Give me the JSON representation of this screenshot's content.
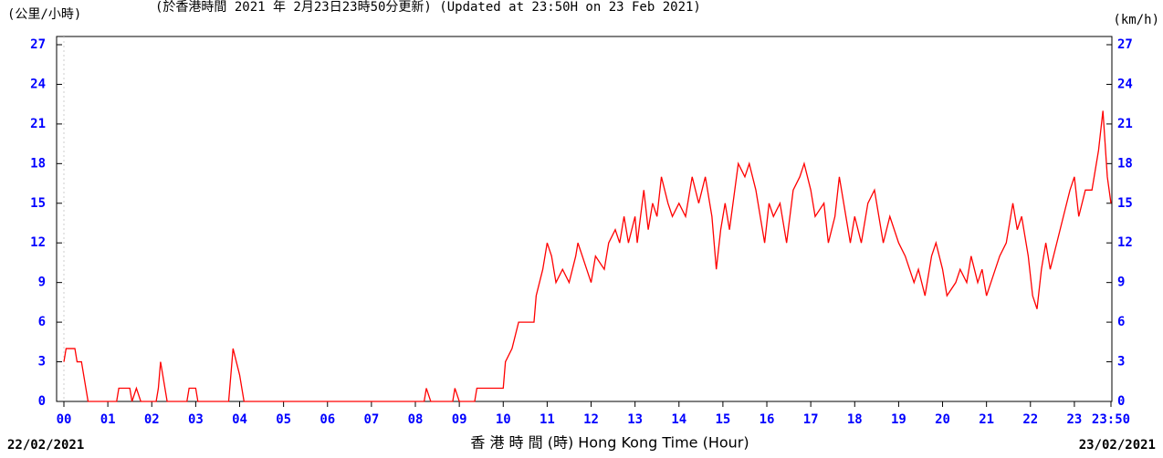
{
  "chart_data": {
    "type": "line",
    "title": "(於香港時間 2021 年 2月23日23時50分更新) (Updated at 23:50H on 23 Feb 2021)",
    "y_label": "(公里/小時)",
    "y2_label": "(km/h)",
    "x_label": "香 港 時 間 (時) Hong Kong Time (Hour)",
    "start_date": "22/02/2021",
    "end_date": "23/02/2021",
    "xlim": [
      0,
      23.833
    ],
    "xticks": [
      {
        "value": 0,
        "label": "00"
      },
      {
        "value": 1,
        "label": "01"
      },
      {
        "value": 2,
        "label": "02"
      },
      {
        "value": 3,
        "label": "03"
      },
      {
        "value": 4,
        "label": "04"
      },
      {
        "value": 5,
        "label": "05"
      },
      {
        "value": 6,
        "label": "06"
      },
      {
        "value": 7,
        "label": "07"
      },
      {
        "value": 8,
        "label": "08"
      },
      {
        "value": 9,
        "label": "09"
      },
      {
        "value": 10,
        "label": "10"
      },
      {
        "value": 11,
        "label": "11"
      },
      {
        "value": 12,
        "label": "12"
      },
      {
        "value": 13,
        "label": "13"
      },
      {
        "value": 14,
        "label": "14"
      },
      {
        "value": 15,
        "label": "15"
      },
      {
        "value": 16,
        "label": "16"
      },
      {
        "value": 17,
        "label": "17"
      },
      {
        "value": 18,
        "label": "18"
      },
      {
        "value": 19,
        "label": "19"
      },
      {
        "value": 20,
        "label": "20"
      },
      {
        "value": 21,
        "label": "21"
      },
      {
        "value": 22,
        "label": "22"
      },
      {
        "value": 23,
        "label": "23"
      },
      {
        "value": 23.833,
        "label": "23:50"
      }
    ],
    "ylim": [
      0,
      27
    ],
    "yticks": [
      0,
      3,
      6,
      9,
      12,
      15,
      18,
      21,
      24,
      27
    ],
    "series": [
      {
        "color": "#ff0000",
        "x": [
          0,
          0.05,
          0.25,
          0.3,
          0.4,
          0.5,
          0.55,
          1.2,
          1.25,
          1.5,
          1.55,
          1.65,
          1.75,
          2.1,
          2.15,
          2.2,
          2.3,
          2.35,
          2.8,
          2.85,
          3.0,
          3.05,
          3.75,
          3.85,
          4.0,
          4.1,
          8.2,
          8.25,
          8.35,
          8.85,
          8.9,
          9.0,
          9.35,
          9.4,
          10.0,
          10.05,
          10.2,
          10.35,
          10.7,
          10.75,
          10.9,
          11.0,
          11.1,
          11.2,
          11.35,
          11.5,
          11.65,
          11.7,
          11.9,
          12.0,
          12.1,
          12.3,
          12.4,
          12.55,
          12.65,
          12.75,
          12.85,
          13.0,
          13.05,
          13.2,
          13.3,
          13.4,
          13.5,
          13.6,
          13.75,
          13.85,
          14.0,
          14.15,
          14.3,
          14.45,
          14.6,
          14.75,
          14.85,
          14.95,
          15.05,
          15.15,
          15.35,
          15.5,
          15.6,
          15.75,
          15.85,
          15.95,
          16.05,
          16.15,
          16.3,
          16.45,
          16.6,
          16.75,
          16.85,
          17.0,
          17.1,
          17.3,
          17.4,
          17.55,
          17.65,
          17.8,
          17.9,
          18.0,
          18.15,
          18.3,
          18.45,
          18.55,
          18.65,
          18.8,
          19.0,
          19.15,
          19.35,
          19.45,
          19.6,
          19.75,
          19.85,
          20.0,
          20.1,
          20.3,
          20.4,
          20.55,
          20.65,
          20.8,
          20.9,
          21.0,
          21.1,
          21.3,
          21.45,
          21.6,
          21.7,
          21.8,
          21.95,
          22.05,
          22.15,
          22.25,
          22.35,
          22.45,
          22.6,
          22.75,
          22.9,
          23.0,
          23.1,
          23.25,
          23.4,
          23.55,
          23.65,
          23.75,
          23.833
        ],
        "values": [
          3,
          4,
          4,
          3,
          3,
          1,
          0,
          0,
          1,
          1,
          0,
          1,
          0,
          0,
          1,
          3,
          1,
          0,
          0,
          1,
          1,
          0,
          0,
          4,
          2,
          0,
          0,
          1,
          0,
          0,
          1,
          0,
          0,
          1,
          1,
          3,
          4,
          6,
          6,
          8,
          10,
          12,
          11,
          9,
          10,
          9,
          11,
          12,
          10,
          9,
          11,
          10,
          12,
          13,
          12,
          14,
          12,
          14,
          12,
          16,
          13,
          15,
          14,
          17,
          15,
          14,
          15,
          14,
          17,
          15,
          17,
          14,
          10,
          13,
          15,
          13,
          18,
          17,
          18,
          16,
          14,
          12,
          15,
          14,
          15,
          12,
          16,
          17,
          18,
          16,
          14,
          15,
          12,
          14,
          17,
          14,
          12,
          14,
          12,
          15,
          16,
          14,
          12,
          14,
          12,
          11,
          9,
          10,
          8,
          11,
          12,
          10,
          8,
          9,
          10,
          9,
          11,
          9,
          10,
          8,
          9,
          11,
          12,
          15,
          13,
          14,
          11,
          8,
          7,
          10,
          12,
          10,
          12,
          14,
          16,
          17,
          14,
          16,
          16,
          19,
          22,
          17,
          15
        ]
      }
    ]
  }
}
